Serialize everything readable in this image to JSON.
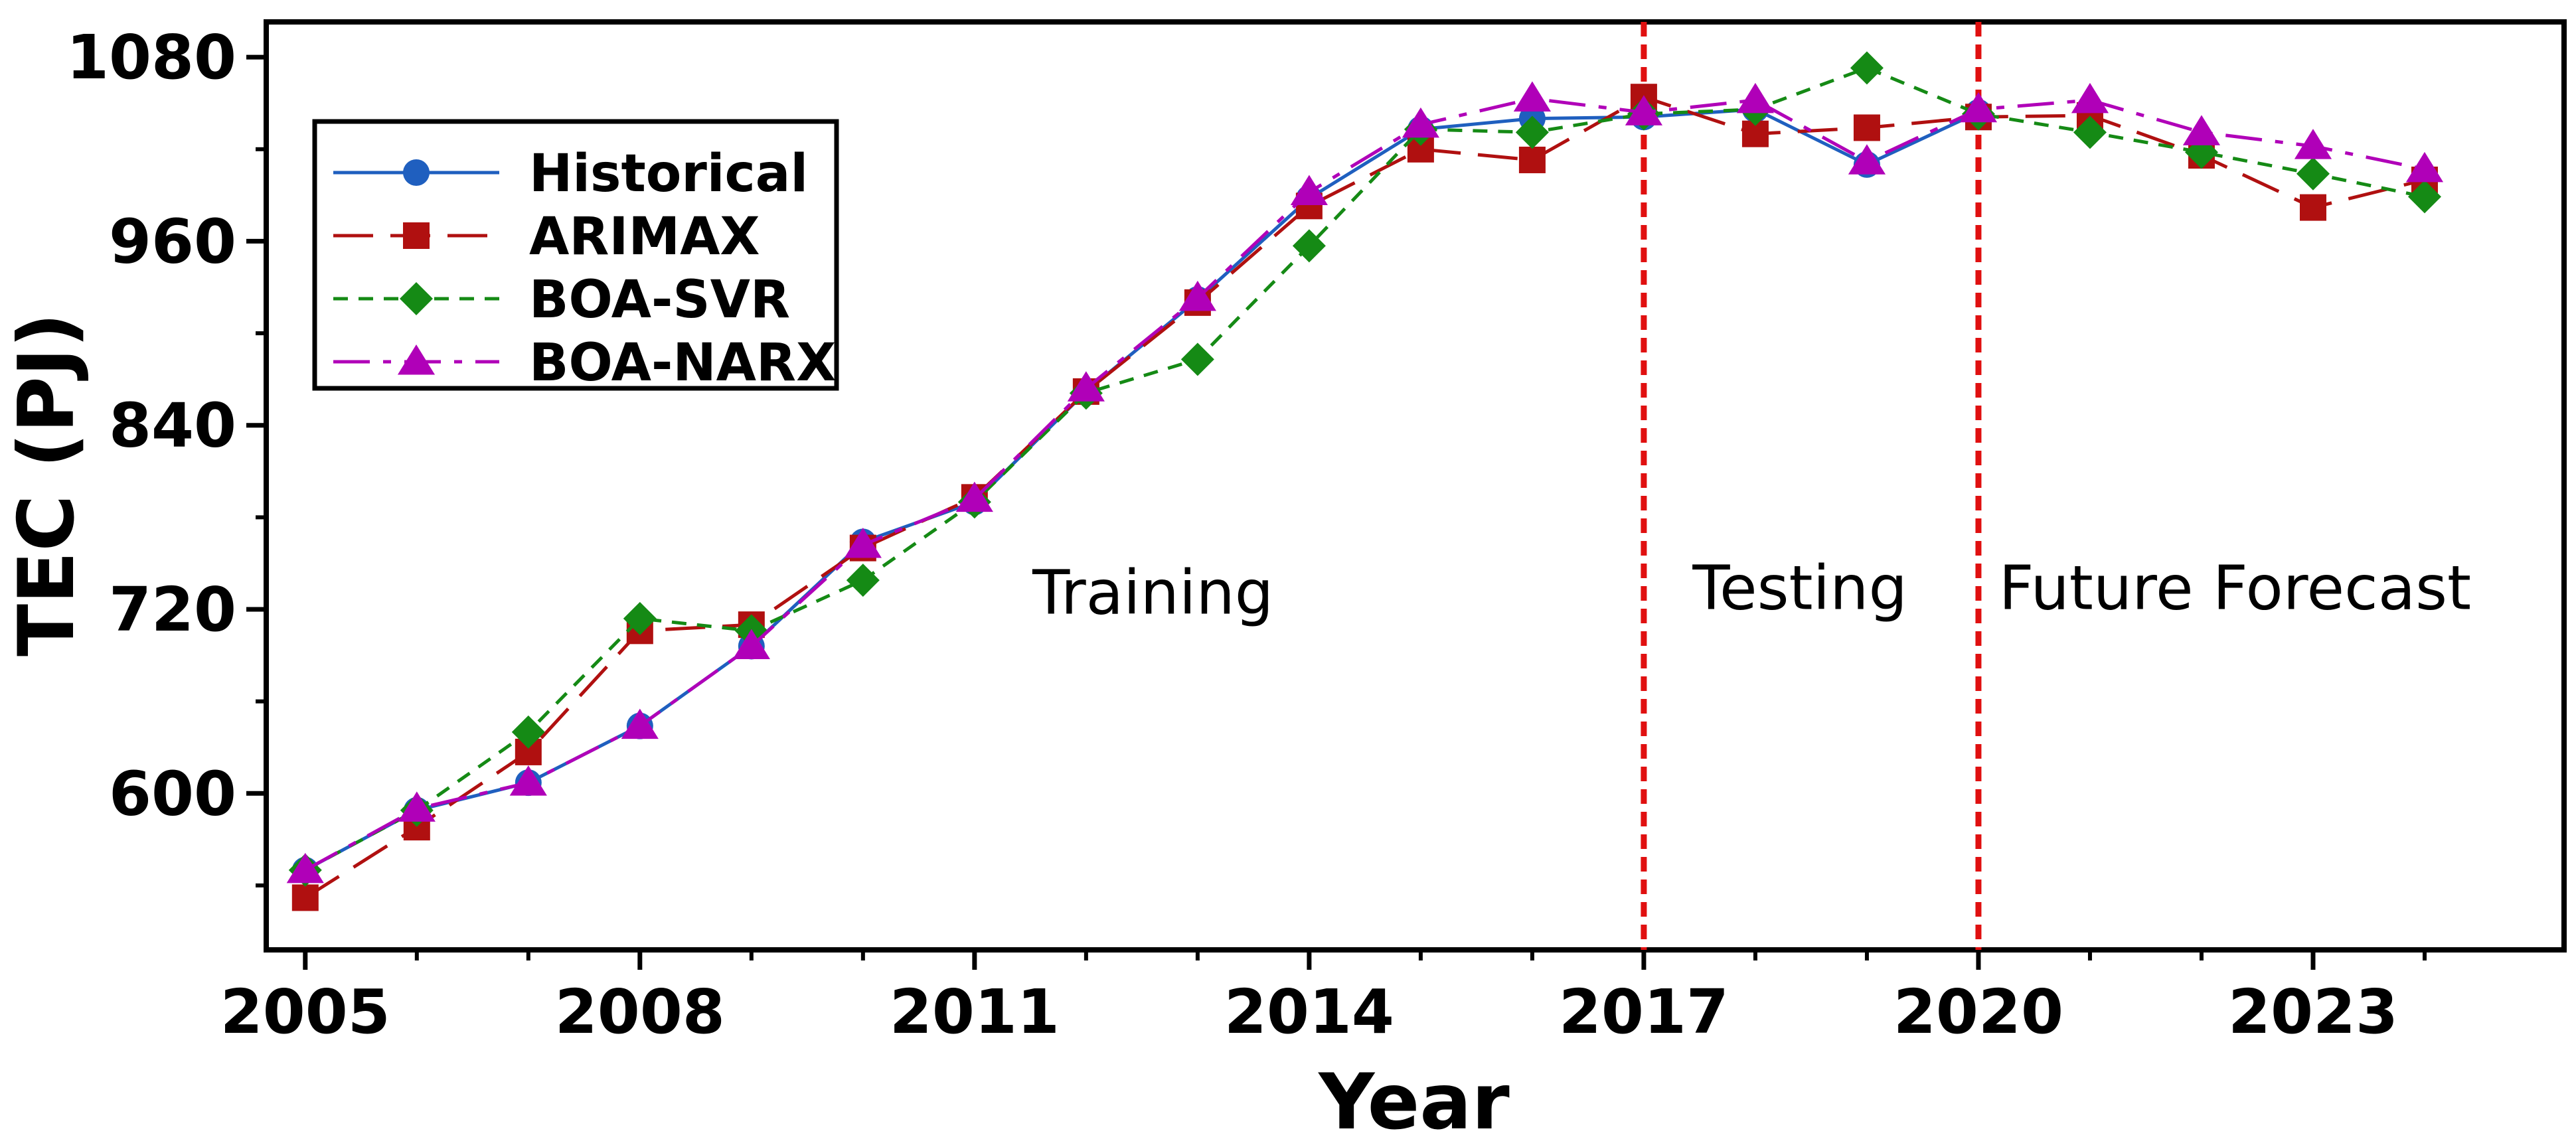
{
  "chart_data": {
    "type": "line",
    "title": "",
    "xlabel": "Year",
    "ylabel": "TEC (PJ)",
    "xlim": [
      2004.65,
      2025.25
    ],
    "ylim": [
      498,
      1103
    ],
    "x_ticks": [
      2005,
      2008,
      2011,
      2014,
      2017,
      2020,
      2023
    ],
    "y_ticks": [
      600,
      720,
      840,
      960,
      1080
    ],
    "legend_position": "top-left",
    "series": [
      {
        "name": "Historical",
        "color": "#1f5fbf",
        "marker": "circle",
        "dash": "solid",
        "x": [
          2005,
          2006,
          2007,
          2008,
          2009,
          2010,
          2011,
          2012,
          2013,
          2014,
          2015,
          2016,
          2017,
          2018,
          2019,
          2020
        ],
        "y": [
          550,
          589,
          607,
          644,
          696,
          764,
          790,
          862,
          922,
          988,
          1033,
          1040,
          1041,
          1046,
          1010,
          1044
        ]
      },
      {
        "name": "ARIMAX",
        "color": "#b01010",
        "marker": "square",
        "dash": "long-dash",
        "x": [
          2005,
          2006,
          2007,
          2008,
          2009,
          2010,
          2011,
          2012,
          2013,
          2014,
          2015,
          2016,
          2017,
          2018,
          2019,
          2020,
          2021,
          2022,
          2023,
          2024
        ],
        "y": [
          532,
          578,
          627,
          706,
          710,
          760,
          793,
          862,
          920,
          983,
          1020,
          1013,
          1054,
          1030,
          1034,
          1041,
          1042,
          1016,
          982,
          1000
        ]
      },
      {
        "name": "BOA-SVR",
        "color": "#158a15",
        "marker": "diamond",
        "dash": "short-dash",
        "x": [
          2005,
          2006,
          2007,
          2008,
          2009,
          2010,
          2011,
          2012,
          2013,
          2014,
          2015,
          2016,
          2017,
          2018,
          2019,
          2020,
          2021,
          2022,
          2023,
          2024
        ],
        "y": [
          550,
          589,
          640,
          714,
          706,
          739,
          790,
          861,
          883,
          957,
          1033,
          1031,
          1043,
          1046,
          1073,
          1043,
          1031,
          1018,
          1004,
          989
        ]
      },
      {
        "name": "BOA-NARX",
        "color": "#b000b8",
        "marker": "triangle",
        "dash": "dash-dot",
        "x": [
          2005,
          2006,
          2007,
          2008,
          2009,
          2010,
          2011,
          2012,
          2013,
          2014,
          2015,
          2016,
          2017,
          2018,
          2019,
          2020,
          2021,
          2022,
          2023,
          2024
        ],
        "y": [
          550,
          590,
          607,
          644,
          696,
          762,
          792,
          864,
          923,
          992,
          1036,
          1053,
          1044,
          1052,
          1012,
          1046,
          1052,
          1031,
          1022,
          1007
        ]
      }
    ],
    "vertical_lines": [
      {
        "x": 2017,
        "color": "#e01010",
        "style": "dotted"
      },
      {
        "x": 2020,
        "color": "#e01010",
        "style": "dotted"
      }
    ],
    "annotations": [
      {
        "text": "Training",
        "x": 2012.6,
        "y": 731
      },
      {
        "text": "Testing",
        "x": 2018.4,
        "y": 734
      },
      {
        "text": "Future Forecast",
        "x": 2022.3,
        "y": 734
      }
    ]
  }
}
